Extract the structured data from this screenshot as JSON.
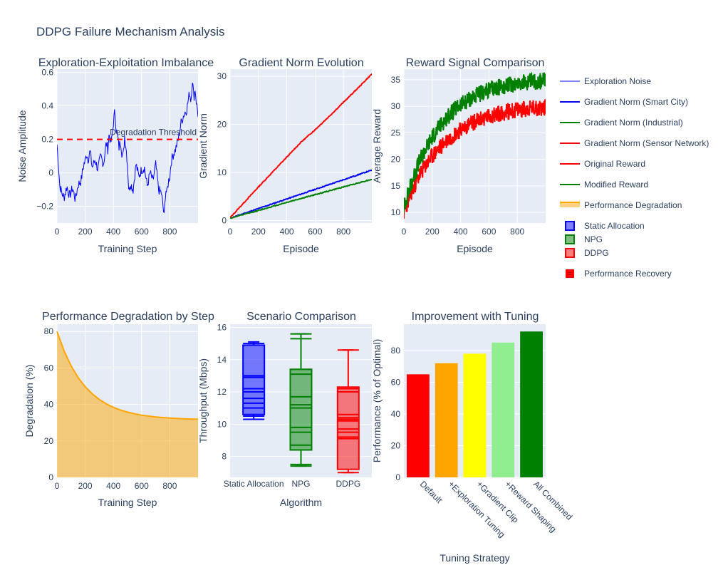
{
  "figure_title": "DDPG Failure Mechanism Analysis",
  "colors": {
    "plot_bg": "#e5ecf6",
    "grid": "#ffffff",
    "text": "#2a3f5f",
    "blue": "#0000ff",
    "red": "#ff0000",
    "green": "#008000",
    "orange": "#ffa500",
    "yellow": "#ffff00",
    "lightgreen": "#90ee90"
  },
  "legend": [
    {
      "label": "Exploration Noise",
      "kind": "line-thin",
      "color": "#0000ff"
    },
    {
      "label": "Gradient Norm (Smart City)",
      "kind": "line",
      "color": "#0000ff"
    },
    {
      "label": "Gradient Norm (Industrial)",
      "kind": "line",
      "color": "#008000"
    },
    {
      "label": "Gradient Norm (Sensor Network)",
      "kind": "line",
      "color": "#ff0000"
    },
    {
      "label": "Original Reward",
      "kind": "line",
      "color": "#ff0000"
    },
    {
      "label": "Modified Reward",
      "kind": "line",
      "color": "#008000"
    },
    {
      "label": "Performance Degradation",
      "kind": "area",
      "color": "#ffa500"
    },
    {
      "label": "Static Allocation",
      "kind": "box",
      "color": "#0000ff"
    },
    {
      "label": "NPG",
      "kind": "box",
      "color": "#008000"
    },
    {
      "label": "DDPG",
      "kind": "box",
      "color": "#ff0000"
    },
    {
      "label": "Performance Recovery",
      "kind": "bar",
      "color": "#ff0000"
    }
  ],
  "chart_data": [
    {
      "type": "line",
      "title": "Exploration-Exploitation Imbalance",
      "xlabel": "Training Step",
      "ylabel": "Noise Amplitude",
      "xlim": [
        0,
        1000
      ],
      "ylim": [
        -0.3,
        0.62
      ],
      "xticks": [
        0,
        200,
        400,
        600,
        800
      ],
      "yticks": [
        -0.2,
        0,
        0.2,
        0.4,
        0.6
      ],
      "ytick_labels": [
        "−0.2",
        "0",
        "0.2",
        "0.4",
        "0.6"
      ],
      "series": [
        {
          "name": "Exploration Noise",
          "color": "#0000ff",
          "x": [
            0,
            10,
            20,
            35,
            50,
            70,
            90,
            110,
            130,
            150,
            170,
            190,
            200,
            210,
            220,
            235,
            250,
            270,
            290,
            310,
            330,
            340,
            350,
            360,
            370,
            380,
            390,
            400,
            410,
            420,
            430,
            440,
            450,
            460,
            470,
            480,
            490,
            500,
            510,
            520,
            540,
            560,
            580,
            600,
            620,
            640,
            660,
            680,
            700,
            720,
            740,
            760,
            770,
            780,
            790,
            800,
            810,
            820,
            840,
            860,
            880,
            900,
            920,
            940,
            950,
            960,
            970,
            980,
            990,
            1000
          ],
          "y": [
            0.17,
            0.05,
            -0.08,
            -0.12,
            -0.15,
            -0.08,
            -0.14,
            -0.09,
            -0.16,
            -0.07,
            -0.05,
            0.05,
            0.07,
            0.12,
            0.08,
            0.13,
            0.03,
            0.08,
            0.02,
            0.1,
            0.05,
            0.12,
            0.18,
            0.14,
            0.24,
            0.18,
            0.2,
            0.3,
            0.37,
            0.26,
            0.22,
            0.15,
            0.2,
            0.12,
            0.1,
            0.22,
            0.15,
            0.05,
            -0.12,
            -0.06,
            -0.1,
            0.05,
            -0.02,
            0.02,
            0.03,
            -0.08,
            0.0,
            -0.05,
            0.05,
            -0.1,
            -0.12,
            -0.26,
            -0.1,
            -0.12,
            -0.05,
            -0.02,
            0.07,
            0.1,
            0.14,
            0.2,
            0.3,
            0.35,
            0.38,
            0.48,
            0.43,
            0.56,
            0.45,
            0.5,
            0.41,
            0.35
          ]
        }
      ],
      "threshold": {
        "y": 0.2,
        "label": "Degradation Threshold",
        "color": "#ff0000"
      }
    },
    {
      "type": "line",
      "title": "Gradient Norm Evolution",
      "xlabel": "Episode",
      "ylabel": "Gradient Norm",
      "xlim": [
        0,
        1000
      ],
      "ylim": [
        -0.5,
        31.5
      ],
      "xticks": [
        0,
        200,
        400,
        600,
        800
      ],
      "yticks": [
        0,
        10,
        20,
        30
      ],
      "series": [
        {
          "name": "Gradient Norm (Smart City)",
          "color": "#0000ff",
          "x": [
            0,
            200,
            400,
            600,
            800,
            1000
          ],
          "y": [
            0.5,
            2.5,
            4.5,
            6.5,
            8.5,
            10.5
          ]
        },
        {
          "name": "Gradient Norm (Industrial)",
          "color": "#008000",
          "x": [
            0,
            200,
            400,
            600,
            800,
            1000
          ],
          "y": [
            0.5,
            2.1,
            3.8,
            5.4,
            7.0,
            8.6
          ]
        },
        {
          "name": "Gradient Norm (Sensor Network)",
          "color": "#ff0000",
          "x": [
            0,
            100,
            200,
            300,
            400,
            500,
            600,
            700,
            800,
            900,
            1000
          ],
          "y": [
            0.6,
            3.8,
            7.0,
            10.1,
            13.2,
            16.3,
            18.9,
            21.7,
            24.6,
            27.5,
            30.5
          ]
        }
      ]
    },
    {
      "type": "line",
      "title": "Reward Signal Comparison",
      "xlabel": "Episode",
      "ylabel": "Average Reward",
      "xlim": [
        0,
        1000
      ],
      "ylim": [
        8,
        37
      ],
      "xticks": [
        0,
        200,
        400,
        600,
        800
      ],
      "yticks": [
        10,
        15,
        20,
        25,
        30,
        35
      ],
      "series": [
        {
          "name": "Original Reward",
          "color": "#ff0000",
          "x": [
            0,
            50,
            100,
            150,
            200,
            250,
            300,
            350,
            400,
            450,
            500,
            550,
            600,
            650,
            700,
            750,
            800,
            850,
            900,
            950,
            1000
          ],
          "y": [
            10,
            13.6,
            16.5,
            18.7,
            20.6,
            22.1,
            23.5,
            24.6,
            25.6,
            26.4,
            27.1,
            27.6,
            28.1,
            28.5,
            28.8,
            29.1,
            29.3,
            29.5,
            29.6,
            29.7,
            29.8
          ]
        },
        {
          "name": "Modified Reward",
          "color": "#008000",
          "x": [
            0,
            50,
            100,
            150,
            200,
            250,
            300,
            350,
            400,
            450,
            500,
            550,
            600,
            650,
            700,
            750,
            800,
            850,
            900,
            950,
            1000
          ],
          "y": [
            11,
            15.3,
            19.0,
            21.8,
            24.2,
            26.1,
            27.8,
            29.1,
            30.2,
            31.1,
            31.9,
            32.5,
            33.0,
            33.5,
            33.8,
            34.1,
            34.3,
            34.5,
            34.6,
            34.7,
            34.8
          ]
        }
      ]
    },
    {
      "type": "area",
      "title": "Performance Degradation by Step",
      "xlabel": "Training Step",
      "ylabel": "Degradation (%)",
      "xlim": [
        0,
        1000
      ],
      "ylim": [
        0,
        84
      ],
      "xticks": [
        0,
        200,
        400,
        600,
        800
      ],
      "yticks": [
        0,
        20,
        40,
        60,
        80
      ],
      "series": [
        {
          "name": "Performance Degradation",
          "color": "#ffa500",
          "x": [
            0,
            50,
            100,
            150,
            200,
            250,
            300,
            350,
            400,
            450,
            500,
            550,
            600,
            650,
            700,
            750,
            800,
            850,
            900,
            950,
            1000
          ],
          "y": [
            80,
            69.4,
            61.2,
            54.7,
            49.7,
            45.8,
            42.7,
            40.3,
            38.4,
            36.9,
            35.8,
            34.9,
            34.1,
            33.6,
            33.1,
            32.8,
            32.5,
            32.3,
            32.1,
            32.0,
            31.9
          ]
        }
      ]
    },
    {
      "type": "box",
      "title": "Scenario Comparison",
      "xlabel": "Algorithm",
      "ylabel": "Throughput (Mbps)",
      "ylim": [
        6.7,
        16.2
      ],
      "yticks": [
        8,
        10,
        12,
        14,
        16
      ],
      "categories": [
        "Static Allocation",
        "NPG",
        "DDPG"
      ],
      "series": [
        {
          "name": "Static Allocation",
          "color": "#0000ff",
          "min": 10.3,
          "q1": 10.6,
          "median": 12.0,
          "q3": 14.9,
          "max": 15.1,
          "lines": [
            10.3,
            10.5,
            11.0,
            11.3,
            11.6,
            12.0,
            12.2,
            12.9,
            13.0,
            15.0
          ]
        },
        {
          "name": "NPG",
          "color": "#008000",
          "min": 7.4,
          "q1": 8.4,
          "median": 11.7,
          "q3": 13.4,
          "max": 15.6,
          "lines": [
            7.4,
            7.5,
            8.7,
            9.5,
            9.8,
            11.0,
            11.2,
            13.1,
            13.4,
            15.3,
            15.6
          ]
        },
        {
          "name": "DDPG",
          "color": "#ff0000",
          "min": 7.0,
          "q1": 7.2,
          "median": 10.3,
          "q3": 12.3,
          "max": 14.6,
          "lines": [
            7.0,
            9.1,
            9.2,
            9.5,
            9.7,
            10.2,
            10.4,
            10.6,
            12.0,
            12.2,
            14.6
          ]
        }
      ]
    },
    {
      "type": "bar",
      "title": "Improvement with Tuning",
      "xlabel": "Tuning Strategy",
      "ylabel": "Performance (% of Optimal)",
      "ylim": [
        0,
        96.6
      ],
      "yticks": [
        0,
        20,
        40,
        60,
        80
      ],
      "categories": [
        "Default",
        "+Exploration Tuning",
        "+Gradient Clip",
        "+Reward Shaping",
        "All Combined"
      ],
      "values": [
        65,
        72,
        78,
        85,
        92
      ],
      "bar_colors": [
        "#ff0000",
        "#ffa500",
        "#ffff00",
        "#90ee90",
        "#008000"
      ],
      "series_name": "Performance Recovery"
    }
  ]
}
